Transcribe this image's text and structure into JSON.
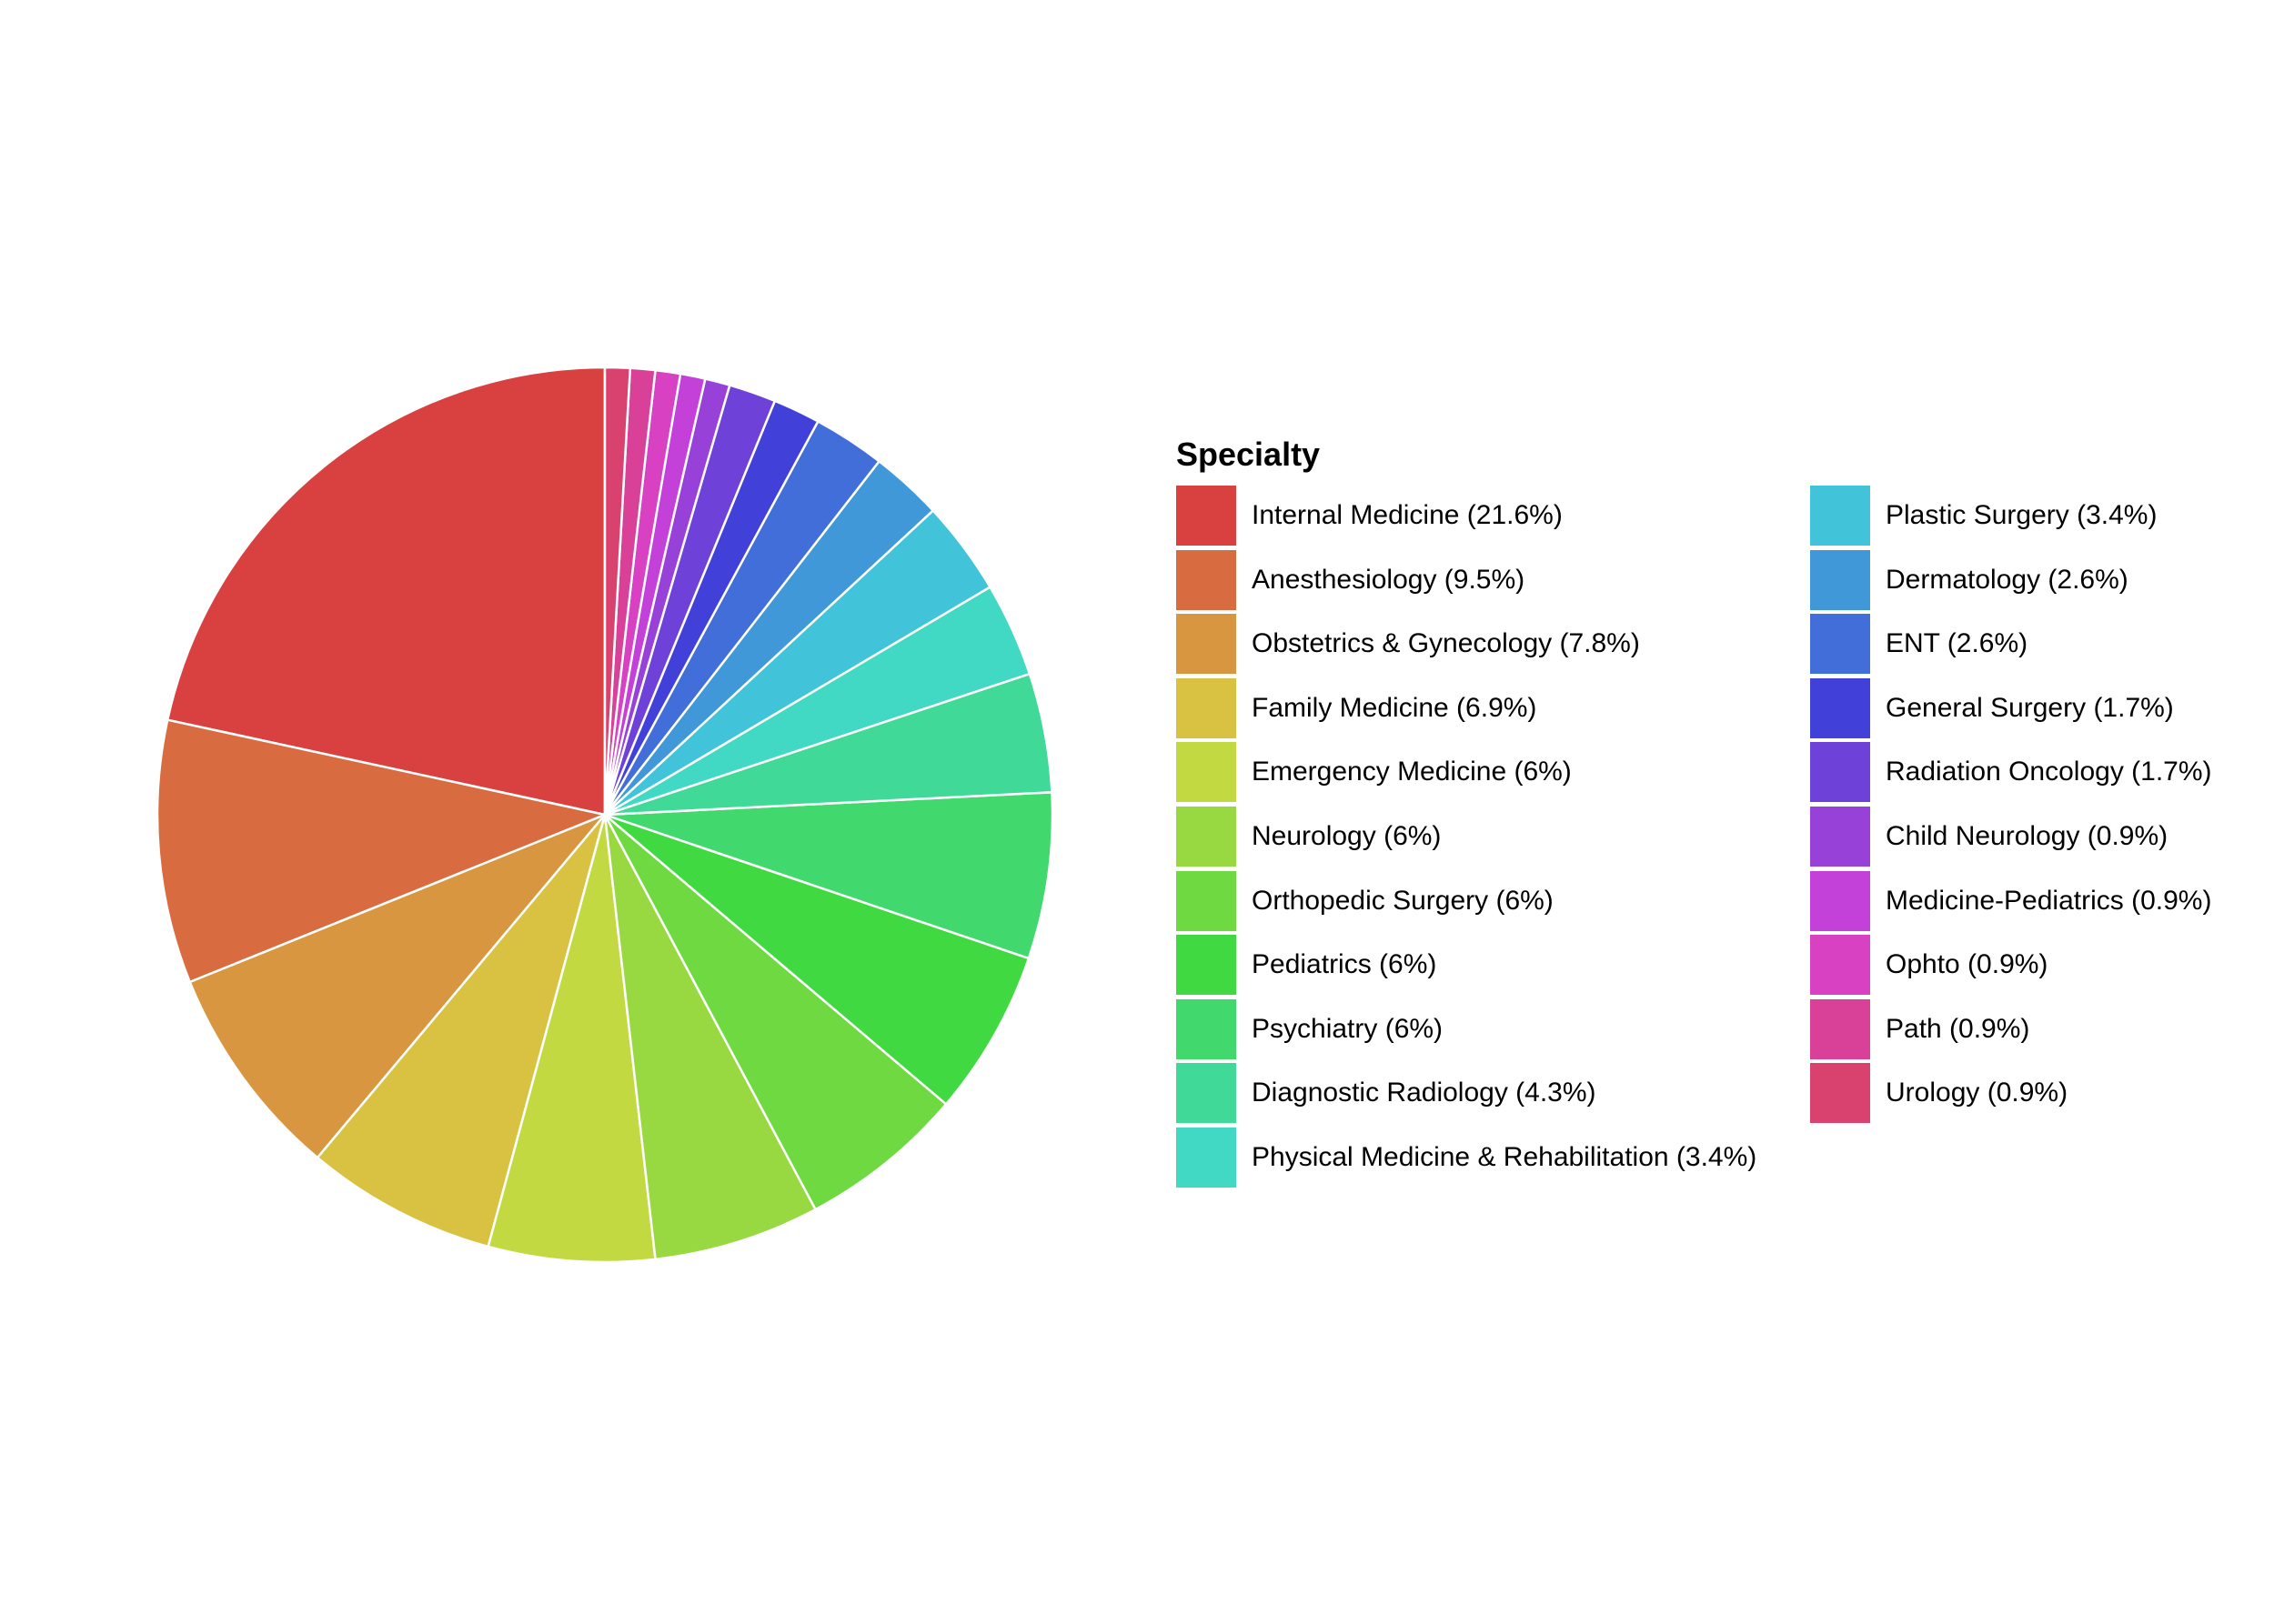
{
  "chart_data": {
    "type": "pie",
    "legend_title": "Specialty",
    "legend_position": "right",
    "start": "top (12 o'clock), clockwise, first slice drawn counter-clockwise from top",
    "slices": [
      {
        "label": "Internal Medicine (21.6%)",
        "value": 21.6,
        "color": "#D94141"
      },
      {
        "label": "Anesthesiology (9.5%)",
        "value": 9.5,
        "color": "#D96B41"
      },
      {
        "label": "Obstetrics & Gynecology (7.8%)",
        "value": 7.8,
        "color": "#D99641"
      },
      {
        "label": "Family Medicine (6.9%)",
        "value": 6.9,
        "color": "#D9C141"
      },
      {
        "label": "Emergency Medicine (6%)",
        "value": 6.0,
        "color": "#C3D941"
      },
      {
        "label": "Neurology (6%)",
        "value": 6.0,
        "color": "#98D941"
      },
      {
        "label": "Orthopedic Surgery (6%)",
        "value": 6.0,
        "color": "#6ED941"
      },
      {
        "label": "Pediatrics (6%)",
        "value": 6.0,
        "color": "#41D941"
      },
      {
        "label": "Psychiatry (6%)",
        "value": 6.0,
        "color": "#41D96E"
      },
      {
        "label": "Diagnostic Radiology (4.3%)",
        "value": 4.3,
        "color": "#41D998"
      },
      {
        "label": "Physical Medicine & Rehabilitation (3.4%)",
        "value": 3.4,
        "color": "#41D9C3"
      },
      {
        "label": "Plastic Surgery (3.4%)",
        "value": 3.4,
        "color": "#41C3D9"
      },
      {
        "label": "Dermatology (2.6%)",
        "value": 2.6,
        "color": "#4198D9"
      },
      {
        "label": "ENT (2.6%)",
        "value": 2.6,
        "color": "#416ED9"
      },
      {
        "label": "General Surgery (1.7%)",
        "value": 1.7,
        "color": "#4141D9"
      },
      {
        "label": "Radiation Oncology (1.7%)",
        "value": 1.7,
        "color": "#6E41D9"
      },
      {
        "label": "Child Neurology (0.9%)",
        "value": 0.9,
        "color": "#9841D9"
      },
      {
        "label": "Medicine-Pediatrics (0.9%)",
        "value": 0.9,
        "color": "#C341D9"
      },
      {
        "label": "Ophto (0.9%)",
        "value": 0.9,
        "color": "#D941C3"
      },
      {
        "label": "Path (0.9%)",
        "value": 0.9,
        "color": "#D94198"
      },
      {
        "label": "Urology (0.9%)",
        "value": 0.9,
        "color": "#D9416E"
      }
    ]
  }
}
